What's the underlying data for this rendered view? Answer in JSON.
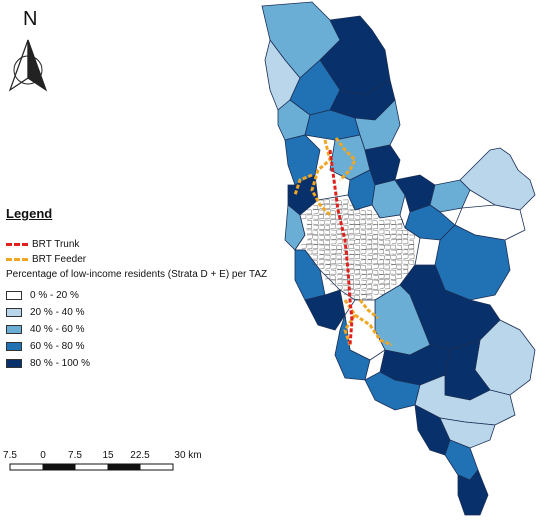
{
  "north": {
    "label": "N"
  },
  "legend": {
    "title": "Legend",
    "lines": [
      {
        "label": "BRT Trunk",
        "color": "#e0201c",
        "style": "dashed"
      },
      {
        "label": "BRT Feeder",
        "color": "#f0a623",
        "style": "dashed"
      }
    ],
    "caption": "Percentage of low-income residents (Strata D + E) per TAZ",
    "classes": [
      {
        "label": "0 % - 20 %",
        "color": "#ffffff"
      },
      {
        "label": "20 % - 40 %",
        "color": "#bad6eb"
      },
      {
        "label": "40 % - 60 %",
        "color": "#6aaed6"
      },
      {
        "label": "60 % - 80 %",
        "color": "#2171b5"
      },
      {
        "label": "80 % - 100 %",
        "color": "#08306b"
      }
    ]
  },
  "scale_bar": {
    "labels": [
      "7.5",
      "0",
      "7.5",
      "15",
      "22.5",
      "30 km"
    ]
  }
}
